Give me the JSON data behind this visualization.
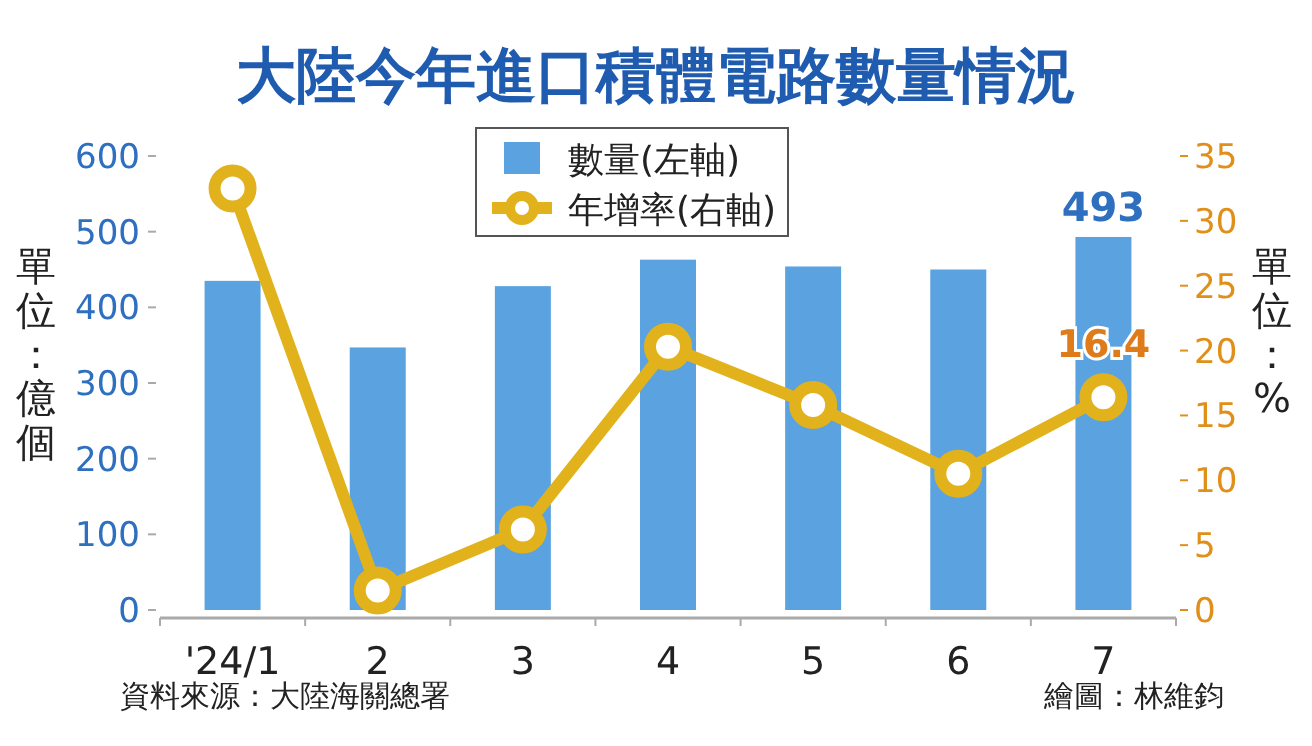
{
  "chart_data": {
    "type": "bar",
    "title": "大陸今年進口積體電路數量情況",
    "ylabel": "單位：億個",
    "y2label": "單位：%",
    "categories": [
      "'24/1",
      "2",
      "3",
      "4",
      "5",
      "6",
      "7"
    ],
    "series": [
      {
        "name": "數量(左軸)",
        "color": "#5ba3e0",
        "values": [
          435,
          347,
          428,
          463,
          454,
          450,
          493
        ],
        "value_labels": [
          null,
          null,
          null,
          null,
          null,
          null,
          "493"
        ]
      },
      {
        "name": "年增率(右軸)",
        "type": "line",
        "axis": "y2",
        "color": "#e2b21c",
        "marker": "circle",
        "values": [
          32.5,
          1.5,
          6.2,
          20.3,
          15.8,
          10.5,
          16.4
        ],
        "value_labels": [
          null,
          null,
          null,
          null,
          null,
          null,
          "16.4"
        ]
      }
    ],
    "ylim": [
      0,
      600
    ],
    "yticks": [
      0,
      100,
      200,
      300,
      400,
      500,
      600
    ],
    "y2lim": [
      0,
      35
    ],
    "y2ticks": [
      0,
      5,
      10,
      15,
      20,
      25,
      30,
      35
    ],
    "legend": "top",
    "grid": false,
    "annotations": [
      "資料來源：大陸海關總署",
      "繪圖：林維鈞"
    ]
  }
}
